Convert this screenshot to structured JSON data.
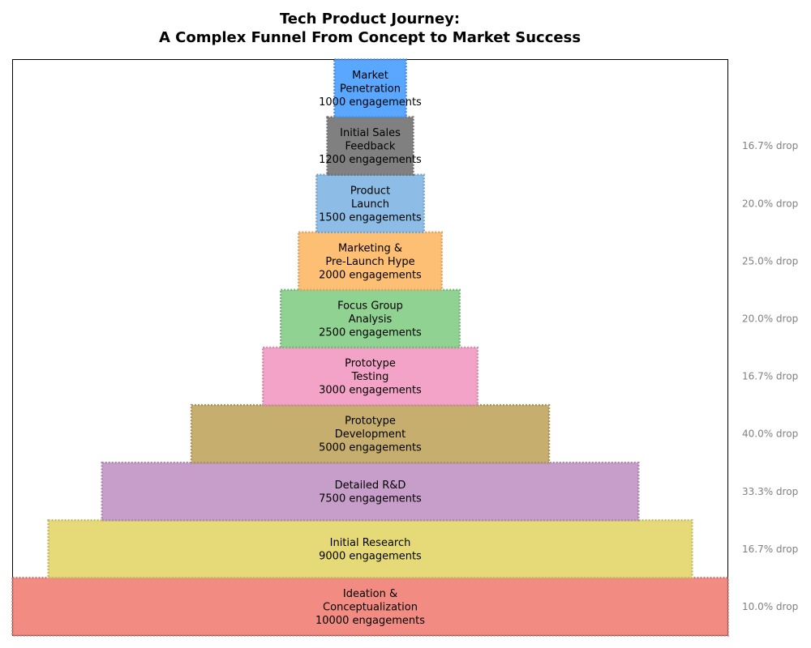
{
  "chart_data": {
    "type": "funnel",
    "title": "Tech Product Journey:",
    "subtitle": "A Complex Funnel From Concept to Market Success",
    "value_suffix": "engagements",
    "stages": [
      {
        "label": "Ideation &\nConceptualization",
        "value": 10000,
        "color": "#f28b82",
        "drop": "10.0% drop"
      },
      {
        "label": "Initial Research",
        "value": 9000,
        "color": "#e6da78",
        "drop": "16.7% drop"
      },
      {
        "label": "Detailed R&D",
        "value": 7500,
        "color": "#c79ec9",
        "drop": "33.3% drop"
      },
      {
        "label": "Prototype\nDevelopment",
        "value": 5000,
        "color": "#c6ae6e",
        "drop": "40.0% drop"
      },
      {
        "label": "Prototype\nTesting",
        "value": 3000,
        "color": "#f4a3c8",
        "drop": "16.7% drop"
      },
      {
        "label": "Focus Group\nAnalysis",
        "value": 2500,
        "color": "#8fd291",
        "drop": "20.0% drop"
      },
      {
        "label": "Marketing &\nPre-Launch Hype",
        "value": 2000,
        "color": "#fdbf73",
        "drop": "25.0% drop"
      },
      {
        "label": "Product\nLaunch",
        "value": 1500,
        "color": "#8dbde6",
        "drop": "20.0% drop"
      },
      {
        "label": "Initial Sales\nFeedback",
        "value": 1200,
        "color": "#808080",
        "drop": "16.7% drop"
      },
      {
        "label": "Market\nPenetration",
        "value": 1000,
        "color": "#5aa7ff",
        "drop": ""
      }
    ]
  }
}
